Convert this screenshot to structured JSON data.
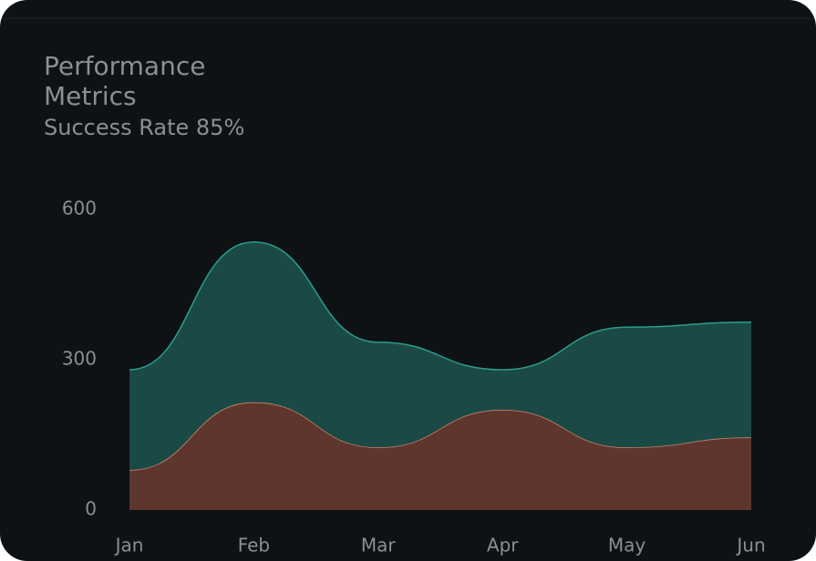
{
  "chart_data": {
    "type": "stacked-area",
    "title": "Performance Metrics",
    "subtitle": "Success Rate 85%",
    "categories": [
      "Jan",
      "Feb",
      "Mar",
      "Apr",
      "May",
      "Jun"
    ],
    "series": [
      {
        "color": "#d08a6a",
        "fill": "#5e362d",
        "values": [
          80,
          215,
          125,
          200,
          125,
          145
        ]
      },
      {
        "color": "#2a9d8f",
        "fill": "#1b4a46",
        "values": [
          200,
          320,
          210,
          80,
          240,
          230
        ]
      }
    ],
    "ylim": [
      0,
      600
    ],
    "yticks": [
      0,
      300,
      600
    ]
  }
}
